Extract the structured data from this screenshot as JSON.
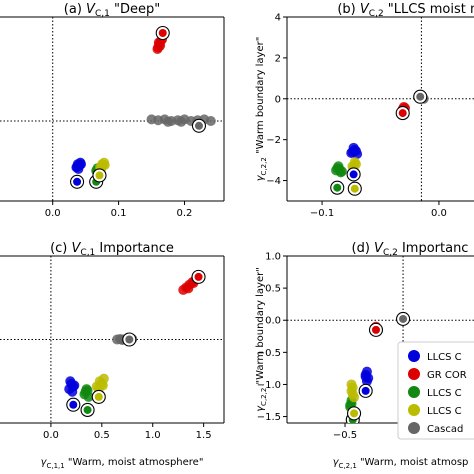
{
  "chart_data": [
    {
      "type": "scatter",
      "title": "(a) V_{C,1} \"Deep\"",
      "xlim": [
        -0.08,
        0.26
      ],
      "ylim": [
        -5.0,
        6.5
      ],
      "xticks": [
        "0.0",
        "0.1",
        "0.2"
      ],
      "yticks": [],
      "xlabel": "",
      "ylabel": "",
      "reference_lines": {
        "x": 0,
        "y": 0
      },
      "clouds": [
        {
          "color": "#0000dd",
          "points": [
            [
              0.036,
              -2.9
            ],
            [
              0.038,
              -2.7
            ],
            [
              0.04,
              -2.8
            ],
            [
              0.042,
              -2.6
            ],
            [
              0.039,
              -3.0
            ],
            [
              0.041,
              -2.75
            ],
            [
              0.037,
              -2.85
            ],
            [
              0.043,
              -2.7
            ]
          ]
        },
        {
          "color": "#dd0000",
          "points": [
            [
              0.16,
              4.6
            ],
            [
              0.162,
              4.8
            ],
            [
              0.164,
              5.0
            ],
            [
              0.163,
              4.7
            ],
            [
              0.161,
              4.9
            ],
            [
              0.166,
              5.1
            ],
            [
              0.159,
              4.5
            ]
          ]
        },
        {
          "color": "#118811",
          "points": [
            [
              0.066,
              -3.1
            ],
            [
              0.068,
              -2.95
            ],
            [
              0.07,
              -3.2
            ],
            [
              0.072,
              -3.0
            ],
            [
              0.069,
              -3.05
            ],
            [
              0.067,
              -3.15
            ]
          ]
        },
        {
          "color": "#bbbb00",
          "points": [
            [
              0.072,
              -2.9
            ],
            [
              0.075,
              -2.7
            ],
            [
              0.078,
              -2.6
            ],
            [
              0.076,
              -2.8
            ],
            [
              0.074,
              -2.95
            ],
            [
              0.079,
              -2.75
            ],
            [
              0.073,
              -3.0
            ]
          ]
        },
        {
          "color": "#666666",
          "points": [
            [
              0.15,
              0.1
            ],
            [
              0.16,
              0.05
            ],
            [
              0.17,
              0.1
            ],
            [
              0.18,
              0.0
            ],
            [
              0.19,
              0.05
            ],
            [
              0.2,
              0.1
            ],
            [
              0.21,
              0.0
            ],
            [
              0.22,
              0.05
            ],
            [
              0.23,
              0.1
            ],
            [
              0.24,
              0.0
            ],
            [
              0.195,
              -0.05
            ],
            [
              0.175,
              -0.05
            ]
          ]
        }
      ],
      "circled": [
        {
          "color": "#0000dd",
          "x": 0.037,
          "y": -3.8
        },
        {
          "color": "#dd0000",
          "x": 0.167,
          "y": 5.5
        },
        {
          "color": "#118811",
          "x": 0.066,
          "y": -3.8
        },
        {
          "color": "#bbbb00",
          "x": 0.071,
          "y": -3.4
        },
        {
          "color": "#666666",
          "x": 0.222,
          "y": -0.3
        }
      ]
    },
    {
      "type": "scatter",
      "title": "(b) V_{C,2} \"LLCS moist m",
      "xlim": [
        -0.13,
        0.03
      ],
      "ylim": [
        -5.0,
        4.0
      ],
      "xticks": [
        "−0.1",
        "0.0"
      ],
      "yticks": [
        "−4",
        "−2",
        "0",
        "2",
        "4"
      ],
      "xlabel": "",
      "ylabel": "γ_{C,2,2} \"Warm boundary layer\"",
      "reference_lines": {
        "x": -0.015,
        "y": 0
      },
      "clouds": [
        {
          "color": "#0000dd",
          "points": [
            [
              -0.074,
              -2.6
            ],
            [
              -0.072,
              -2.5
            ],
            [
              -0.07,
              -2.7
            ],
            [
              -0.073,
              -2.4
            ],
            [
              -0.071,
              -2.55
            ],
            [
              -0.075,
              -2.65
            ]
          ]
        },
        {
          "color": "#dd0000",
          "points": [
            [
              -0.031,
              -0.5
            ],
            [
              -0.03,
              -0.4
            ],
            [
              -0.029,
              -0.45
            ]
          ]
        },
        {
          "color": "#118811",
          "points": [
            [
              -0.088,
              -3.5
            ],
            [
              -0.086,
              -3.3
            ],
            [
              -0.084,
              -3.6
            ],
            [
              -0.087,
              -3.4
            ],
            [
              -0.085,
              -3.45
            ],
            [
              -0.083,
              -3.55
            ]
          ]
        },
        {
          "color": "#bbbb00",
          "points": [
            [
              -0.074,
              -3.3
            ],
            [
              -0.072,
              -3.1
            ],
            [
              -0.073,
              -3.4
            ],
            [
              -0.071,
              -3.2
            ]
          ]
        },
        {
          "color": "#666666",
          "points": [
            [
              -0.014,
              0.05
            ],
            [
              -0.013,
              0.0
            ]
          ]
        }
      ],
      "circled": [
        {
          "color": "#0000dd",
          "x": -0.073,
          "y": -3.7
        },
        {
          "color": "#dd0000",
          "x": -0.031,
          "y": -0.7
        },
        {
          "color": "#118811",
          "x": -0.087,
          "y": -4.35
        },
        {
          "color": "#bbbb00",
          "x": -0.072,
          "y": -4.4
        },
        {
          "color": "#666666",
          "x": -0.016,
          "y": 0.1
        }
      ]
    },
    {
      "type": "scatter",
      "title": "(c) V_{C,1} Importance",
      "xlim": [
        -0.5,
        1.7
      ],
      "ylim": [
        -1.6,
        1.6
      ],
      "xticks": [
        "0.0",
        "0.5",
        "1.0",
        "1.5"
      ],
      "yticks": [],
      "xlabel": "γ_{C,1,1} \"Warm, moist atmosphere\"",
      "ylabel": "",
      "reference_lines": {
        "x": 0,
        "y": 0
      },
      "clouds": [
        {
          "color": "#0000dd",
          "points": [
            [
              0.18,
              -0.95
            ],
            [
              0.2,
              -0.85
            ],
            [
              0.22,
              -0.9
            ],
            [
              0.19,
              -0.8
            ],
            [
              0.21,
              -1.0
            ],
            [
              0.23,
              -0.88
            ]
          ]
        },
        {
          "color": "#dd0000",
          "points": [
            [
              1.3,
              0.95
            ],
            [
              1.33,
              1.0
            ],
            [
              1.36,
              1.05
            ],
            [
              1.39,
              1.1
            ],
            [
              1.42,
              1.15
            ],
            [
              1.35,
              0.98
            ],
            [
              1.4,
              1.08
            ]
          ]
        },
        {
          "color": "#118811",
          "points": [
            [
              0.33,
              -1.05
            ],
            [
              0.35,
              -0.95
            ],
            [
              0.37,
              -1.1
            ],
            [
              0.34,
              -1.0
            ],
            [
              0.36,
              -0.98
            ]
          ]
        },
        {
          "color": "#bbbb00",
          "points": [
            [
              0.45,
              -0.9
            ],
            [
              0.48,
              -0.8
            ],
            [
              0.5,
              -0.85
            ],
            [
              0.52,
              -0.75
            ],
            [
              0.47,
              -0.95
            ],
            [
              0.51,
              -0.88
            ]
          ]
        },
        {
          "color": "#666666",
          "points": [
            [
              0.65,
              0.0
            ],
            [
              0.68,
              0.01
            ],
            [
              0.71,
              0.0
            ],
            [
              0.74,
              0.01
            ],
            [
              0.77,
              0.0
            ],
            [
              0.8,
              0.01
            ],
            [
              0.7,
              -0.01
            ]
          ]
        }
      ],
      "circled": [
        {
          "color": "#0000dd",
          "x": 0.22,
          "y": -1.25
        },
        {
          "color": "#dd0000",
          "x": 1.45,
          "y": 1.2
        },
        {
          "color": "#118811",
          "x": 0.36,
          "y": -1.35
        },
        {
          "color": "#bbbb00",
          "x": 0.47,
          "y": -1.1
        },
        {
          "color": "#666666",
          "x": 0.77,
          "y": 0.0
        }
      ]
    },
    {
      "type": "scatter",
      "title": "(d) V_{C,2} Importanc",
      "xlim": [
        -0.95,
        0.5
      ],
      "ylim": [
        -1.6,
        1.0
      ],
      "xticks": [
        "−0.5",
        "0.0"
      ],
      "yticks": [
        "−1.5",
        "−1.0",
        "−0.5",
        "0.0",
        "0.5",
        "1.0"
      ],
      "xlabel": "γ_{C,2,1} \"Warm, moist atmosp",
      "ylabel": "γ_{C,2,2} \"Warm boundary layer\"",
      "reference_lines": {
        "x": -0.05,
        "y": 0
      },
      "clouds": [
        {
          "color": "#0000dd",
          "points": [
            [
              -0.34,
              -0.85
            ],
            [
              -0.33,
              -0.8
            ],
            [
              -0.32,
              -0.9
            ],
            [
              -0.33,
              -0.95
            ],
            [
              -0.34,
              -0.88
            ]
          ]
        },
        {
          "color": "#dd0000",
          "points": [
            [
              -0.27,
              -0.12
            ],
            [
              -0.26,
              -0.1
            ],
            [
              -0.25,
              -0.15
            ]
          ]
        },
        {
          "color": "#118811",
          "points": [
            [
              -0.46,
              -1.35
            ],
            [
              -0.45,
              -1.3
            ],
            [
              -0.44,
              -1.4
            ],
            [
              -0.45,
              -1.25
            ],
            [
              -0.46,
              -1.32
            ]
          ]
        },
        {
          "color": "#bbbb00",
          "points": [
            [
              -0.45,
              -1.1
            ],
            [
              -0.44,
              -1.05
            ],
            [
              -0.43,
              -1.2
            ],
            [
              -0.44,
              -1.15
            ],
            [
              -0.45,
              -1.0
            ]
          ]
        },
        {
          "color": "#666666",
          "points": [
            [
              -0.05,
              0.0
            ]
          ]
        }
      ],
      "circled": [
        {
          "color": "#0000dd",
          "x": -0.34,
          "y": -1.1
        },
        {
          "color": "#dd0000",
          "x": -0.26,
          "y": -0.15
        },
        {
          "color": "#118811",
          "x": -0.44,
          "y": -1.55
        },
        {
          "color": "#bbbb00",
          "x": -0.43,
          "y": -1.45
        },
        {
          "color": "#666666",
          "x": -0.05,
          "y": 0.02
        }
      ]
    }
  ],
  "legend": {
    "placement": "lower-right",
    "entries": [
      {
        "label": "LLCS C",
        "color": "#0000dd"
      },
      {
        "label": "GR COR",
        "color": "#dd0000"
      },
      {
        "label": "LLCS C",
        "color": "#118811"
      },
      {
        "label": "LLCS C",
        "color": "#bbbb00"
      },
      {
        "label": "Cascad",
        "color": "#666666"
      }
    ]
  }
}
